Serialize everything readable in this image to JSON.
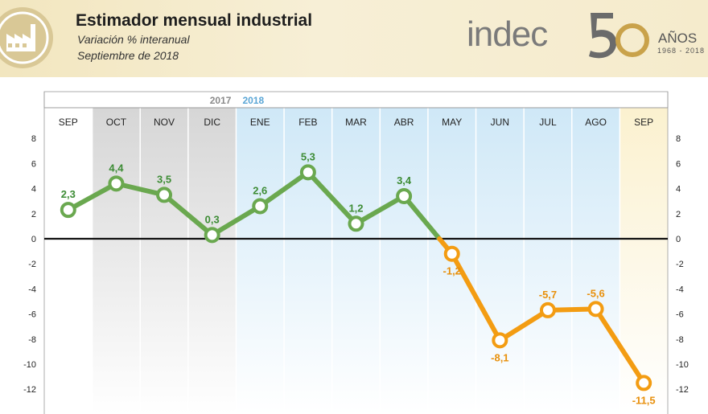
{
  "header": {
    "title": "Estimador mensual industrial",
    "subtitle": "Variación % interanual",
    "period": "Septiembre de 2018",
    "brand": "indec",
    "anniversary_number": "50",
    "anniversary_word": "AÑOS",
    "anniversary_years": "1968  -  2018",
    "icon": "factory-icon"
  },
  "colors": {
    "positive": "#6aa84f",
    "positive_label": "#3d8c35",
    "negative": "#f39c12",
    "negative_label": "#e8900c",
    "band_2017": "#cfcfcf",
    "band_2018": "#cde6f5",
    "band_sep": "#fbf3d4",
    "header_bg": "#f2e6bf",
    "year_2017": "#8a8a8a",
    "year_2018": "#5aa6d6"
  },
  "chart_data": {
    "type": "line",
    "title": "Estimador mensual industrial",
    "subtitle": "Variación % interanual",
    "categories": [
      "SEP",
      "OCT",
      "NOV",
      "DIC",
      "ENE",
      "FEB",
      "MAR",
      "ABR",
      "MAY",
      "JUN",
      "JUL",
      "AGO",
      "SEP"
    ],
    "values": [
      2.3,
      4.4,
      3.5,
      0.3,
      2.6,
      5.3,
      1.2,
      3.4,
      -1.2,
      -8.1,
      -5.7,
      -5.6,
      -11.5
    ],
    "data_labels": [
      "2,3",
      "4,4",
      "3,5",
      "0,3",
      "2,6",
      "5,3",
      "1,2",
      "3,4",
      "-1,2",
      "-8,1",
      "-5,7",
      "-5,6",
      "-11,5"
    ],
    "year_labels": [
      {
        "text": "2017",
        "category_index": 3
      },
      {
        "text": "2018",
        "category_index": 4
      }
    ],
    "y_ticks": [
      8,
      6,
      4,
      2,
      0,
      -2,
      -4,
      -6,
      -8,
      -10,
      -12
    ],
    "y_tick_labels": [
      "8",
      "6",
      "4",
      "2",
      "0",
      "-2",
      "-4",
      "-6",
      "-8",
      "-10",
      "-12"
    ],
    "ylim": [
      -13.5,
      9
    ],
    "grid": false,
    "zero_line": true
  }
}
